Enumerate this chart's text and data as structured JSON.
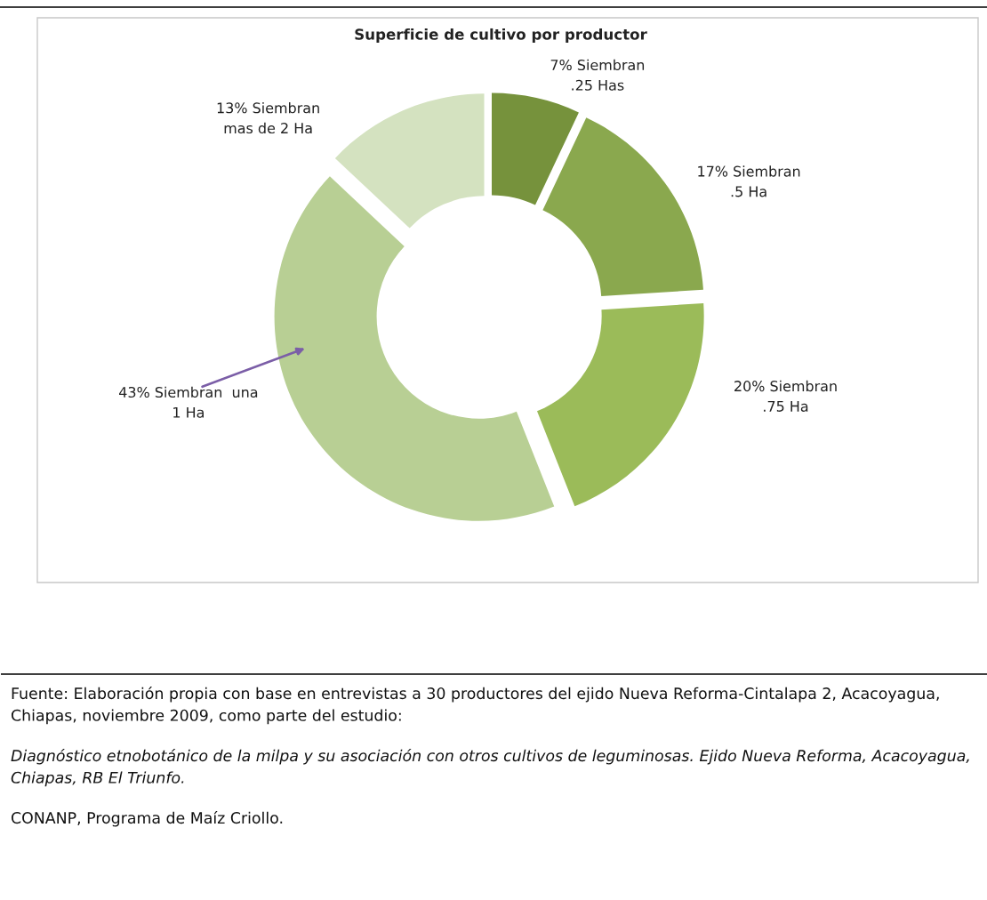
{
  "chart_data": {
    "type": "donut",
    "title": "Superficie de cultivo por productor",
    "categories": [
      "7% Siembran\n.25 Has",
      "17% Siembran\n.5 Ha",
      "20% Siembran\n.75 Ha",
      "43% Siembran  una\n1 Ha",
      "13% Siembran\nmas de 2 Ha"
    ],
    "values": [
      7,
      17,
      20,
      43,
      13
    ],
    "colors": [
      "#76923c",
      "#8aa84e",
      "#9bbb59",
      "#b8cf94",
      "#d4e2c0"
    ],
    "annotations": [
      "Fuente: Elaboración propia con base en entrevistas a 30 productores del ejido Nueva Reforma-Cintalapa 2, Acacoyagua, Chiapas, noviembre 2009, como parte del estudio:",
      "Diagnóstico etnobotánico de la milpa y su asociación con otros cultivos de leguminosas. Ejido Nueva Reforma, Acacoyagua, Chiapas, RB El Triunfo.",
      "CONANP, Programa de Maíz Criollo."
    ],
    "legend": false
  }
}
